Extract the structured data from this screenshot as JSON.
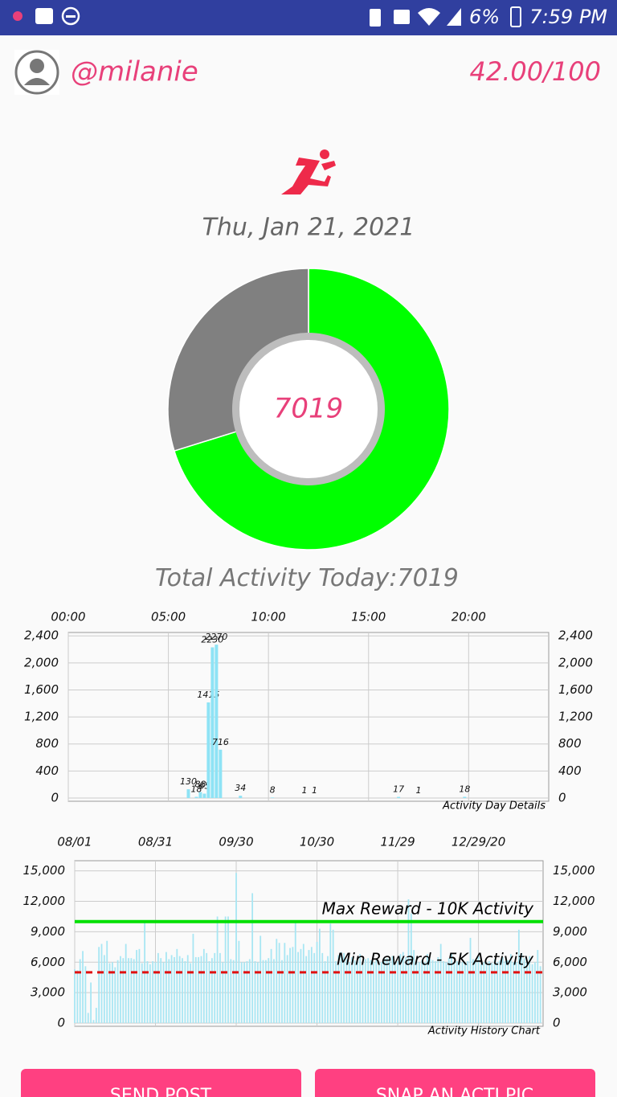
{
  "status_bar": {
    "battery": "6%",
    "time": "7:59 PM"
  },
  "header": {
    "username": "@milanie",
    "score": "42.00/100"
  },
  "date": "Thu, Jan 21, 2021",
  "total_label": "Total Activity Today:",
  "buttons": [
    "SEND POST",
    "SNAP AN ACTI PIC"
  ],
  "chart_data": [
    {
      "type": "donut",
      "values": [
        7019,
        2981
      ],
      "colors": [
        "#00ff00",
        "#808080"
      ]
    },
    {
      "type": "bar",
      "annotation": "Activity Day Details",
      "color": "#8ee3f5",
      "grid": true,
      "x": [
        6.0,
        6.4,
        6.6,
        6.8,
        7.0,
        7.2,
        7.4,
        7.6,
        8.6,
        10.2,
        11.8,
        12.3,
        16.5,
        17.5,
        19.8
      ],
      "values": [
        130,
        18,
        88,
        65,
        1415,
        2230,
        2270,
        716,
        34,
        8,
        1,
        1,
        17,
        1,
        18
      ],
      "xlim": [
        0,
        24
      ],
      "xticks": [
        {
          "value": 0,
          "label": "00:00"
        },
        {
          "value": 5,
          "label": "05:00"
        },
        {
          "value": 10,
          "label": "10:00"
        },
        {
          "value": 15,
          "label": "15:00"
        },
        {
          "value": 20,
          "label": "20:00"
        }
      ],
      "ylim": [
        0,
        2450
      ],
      "yticks": [
        0,
        400,
        800,
        {
          "value": 1200,
          "label": "1,200"
        },
        {
          "value": 1600,
          "label": "1,600"
        },
        {
          "value": 2000,
          "label": "2,000"
        },
        {
          "value": 2400,
          "label": "2,400"
        }
      ]
    },
    {
      "type": "bar",
      "annotation": "Activity History Chart",
      "color": "#a8e6f3",
      "grid": true,
      "x": [
        0,
        1,
        2,
        3,
        4,
        5,
        6,
        7,
        8,
        9,
        10,
        11,
        12,
        13,
        14,
        15,
        16,
        17,
        18,
        19,
        20,
        21,
        22,
        23,
        24,
        25,
        26,
        27,
        28,
        29,
        30,
        31,
        32,
        33,
        34,
        35,
        36,
        37,
        38,
        39,
        40,
        41,
        42,
        43,
        44,
        45,
        46,
        47,
        48,
        49,
        50,
        51,
        52,
        53,
        54,
        55,
        56,
        57,
        58,
        59,
        60,
        61,
        62,
        63,
        64,
        65,
        66,
        67,
        68,
        69,
        70,
        71,
        72,
        73,
        74,
        75,
        76,
        77,
        78,
        79,
        80,
        81,
        82,
        83,
        84,
        85,
        86,
        87,
        88,
        89,
        90,
        91,
        92,
        93,
        94,
        95,
        96,
        97,
        98,
        99,
        100,
        101,
        102,
        103,
        104,
        105,
        106,
        107,
        108,
        109,
        110,
        111,
        112,
        113,
        114,
        115,
        116,
        117,
        118,
        119,
        120,
        121,
        122,
        123,
        124,
        125,
        126,
        127,
        128,
        129,
        130,
        131,
        132,
        133,
        134,
        135,
        136,
        137,
        138,
        139,
        140,
        141,
        142,
        143,
        144,
        145,
        146,
        147,
        148,
        149,
        150,
        151,
        152,
        153,
        154,
        155,
        156,
        157,
        158,
        159,
        160,
        161,
        162,
        163,
        164,
        165,
        166,
        167,
        168,
        169,
        170,
        171,
        172,
        173
      ],
      "values": [
        5300,
        5200,
        6300,
        7100,
        5600,
        1000,
        4000,
        300,
        1500,
        7500,
        7800,
        6700,
        8100,
        5900,
        6000,
        5500,
        6200,
        6600,
        6400,
        7800,
        6400,
        6400,
        6300,
        7200,
        7300,
        5900,
        9900,
        6100,
        5800,
        6100,
        6000,
        6900,
        6400,
        6000,
        7000,
        6300,
        6700,
        6500,
        7300,
        6600,
        6400,
        6100,
        6700,
        5900,
        8800,
        6500,
        6500,
        6600,
        7300,
        6900,
        6100,
        6400,
        6900,
        10500,
        6900,
        6000,
        10500,
        10500,
        6300,
        6200,
        14800,
        8100,
        6000,
        6000,
        6100,
        6300,
        12800,
        6100,
        6000,
        8600,
        6200,
        6200,
        6400,
        7300,
        6300,
        8300,
        7900,
        6200,
        7900,
        6700,
        7400,
        7500,
        10000,
        7000,
        7300,
        7800,
        6600,
        7200,
        7500,
        6900,
        8000,
        9300,
        6900,
        6100,
        6600,
        9800,
        9200,
        6100,
        6700,
        7000,
        6900,
        6300,
        6000,
        6500,
        6200,
        6200,
        6800,
        6100,
        6300,
        6400,
        6200,
        6000,
        6200,
        6000,
        6000,
        6400,
        6400,
        6500,
        6600,
        5900,
        6100,
        6800,
        7000,
        6500,
        12200,
        10800,
        7200,
        6200,
        6000,
        6200,
        6000,
        6800,
        6300,
        6200,
        6100,
        6500,
        7800,
        6100,
        6000,
        6400,
        6900,
        6000,
        6100,
        6100,
        6000,
        6000,
        6100,
        8400,
        6300,
        6000,
        6600,
        5800,
        6000,
        6000,
        6100,
        5900,
        6300,
        6000,
        6200,
        6500,
        6100,
        6200,
        6800,
        6000,
        6000,
        9200,
        6900,
        6400,
        6200,
        6600,
        5800,
        6000,
        7200,
        5600
      ],
      "xlim": [
        0,
        174
      ],
      "xticks": [
        {
          "value": 0,
          "label": "08/01"
        },
        {
          "value": 30,
          "label": "08/31"
        },
        {
          "value": 60,
          "label": "09/30"
        },
        {
          "value": 90,
          "label": "10/30"
        },
        {
          "value": 120,
          "label": "11/29"
        },
        {
          "value": 150,
          "label": "12/29/20"
        }
      ],
      "ylim": [
        0,
        16000
      ],
      "yticks": [
        0,
        {
          "value": 3000,
          "label": "3,000"
        },
        {
          "value": 6000,
          "label": "6,000"
        },
        {
          "value": 9000,
          "label": "9,000"
        },
        {
          "value": 12000,
          "label": "12,000"
        },
        {
          "value": 15000,
          "label": "15,000"
        }
      ],
      "lines": [
        {
          "value": 10000,
          "label": "Max Reward - 10K Activity",
          "color": "#00e000",
          "dashed": false
        },
        {
          "value": 5000,
          "label": "Min Reward - 5K Activity",
          "color": "#e01010",
          "dashed": true
        }
      ]
    }
  ]
}
